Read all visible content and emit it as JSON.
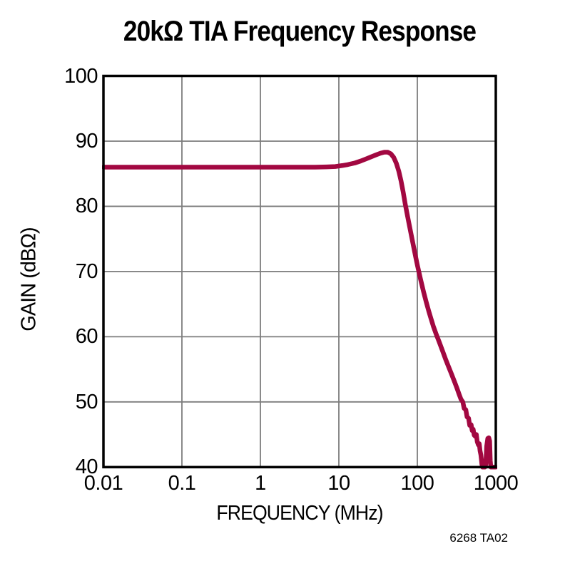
{
  "title": "20kΩ TIA Frequency Response",
  "footer": {
    "revision_code": "6268 TA02"
  },
  "chart_data": {
    "type": "line",
    "title": "20kΩ TIA Frequency Response",
    "xlabel": "FREQUENCY (MHz)",
    "ylabel": "GAIN (dBΩ)",
    "x_scale": "log",
    "y_scale": "linear",
    "xlim": [
      0.01,
      1000
    ],
    "ylim": [
      40,
      100
    ],
    "xticks": [
      "0.01",
      "0.1",
      "1",
      "10",
      "100",
      "1000"
    ],
    "yticks": [
      "100",
      "90",
      "80",
      "70",
      "60",
      "50",
      "40"
    ],
    "grid": true,
    "legend": false,
    "colors": {
      "line": "#A20841",
      "grid": "#7d7d7d",
      "frame": "#000000",
      "text": "#000000",
      "background": "#ffffff"
    },
    "series": [
      {
        "name": "gain",
        "points": [
          [
            0.01,
            86.0
          ],
          [
            0.02,
            86.0
          ],
          [
            0.05,
            86.0
          ],
          [
            0.1,
            86.0
          ],
          [
            0.2,
            86.0
          ],
          [
            0.5,
            86.0
          ],
          [
            1,
            86.0
          ],
          [
            2,
            86.0
          ],
          [
            3,
            86.0
          ],
          [
            5,
            86.0
          ],
          [
            7,
            86.05
          ],
          [
            9,
            86.1
          ],
          [
            11,
            86.25
          ],
          [
            13,
            86.4
          ],
          [
            16,
            86.65
          ],
          [
            19,
            86.95
          ],
          [
            22,
            87.25
          ],
          [
            26,
            87.6
          ],
          [
            30,
            87.9
          ],
          [
            34,
            88.15
          ],
          [
            38,
            88.3
          ],
          [
            42,
            88.3
          ],
          [
            46,
            88.05
          ],
          [
            50,
            87.5
          ],
          [
            54,
            86.6
          ],
          [
            58,
            85.4
          ],
          [
            62,
            83.9
          ],
          [
            66,
            82.2
          ],
          [
            70,
            80.4
          ],
          [
            75,
            78.5
          ],
          [
            80,
            76.8
          ],
          [
            85,
            75.2
          ],
          [
            90,
            73.7
          ],
          [
            95,
            72.3
          ],
          [
            100,
            71.0
          ],
          [
            110,
            68.8
          ],
          [
            120,
            66.9
          ],
          [
            130,
            65.3
          ],
          [
            140,
            63.9
          ],
          [
            150,
            62.7
          ],
          [
            160,
            61.6
          ],
          [
            175,
            60.3
          ],
          [
            190,
            59.2
          ],
          [
            210,
            57.8
          ],
          [
            230,
            56.5
          ],
          [
            250,
            55.4
          ],
          [
            270,
            54.4
          ],
          [
            300,
            53.0
          ],
          [
            320,
            52.1
          ],
          [
            340,
            51.2
          ],
          [
            360,
            50.4
          ],
          [
            380,
            50.0
          ],
          [
            395,
            49.0
          ],
          [
            415,
            48.8
          ],
          [
            430,
            47.7
          ],
          [
            450,
            47.5
          ],
          [
            465,
            46.4
          ],
          [
            485,
            46.5
          ],
          [
            500,
            45.6
          ],
          [
            515,
            45.8
          ],
          [
            530,
            44.9
          ],
          [
            550,
            44.7
          ],
          [
            565,
            45.0
          ],
          [
            580,
            43.9
          ],
          [
            600,
            43.4
          ],
          [
            615,
            43.6
          ],
          [
            630,
            42.5
          ],
          [
            645,
            41.9
          ],
          [
            655,
            41.2
          ],
          [
            665,
            40.4
          ],
          [
            680,
            40.0
          ],
          [
            700,
            40.0
          ],
          [
            725,
            40.0
          ],
          [
            745,
            40.4
          ],
          [
            765,
            43.2
          ],
          [
            790,
            44.4
          ],
          [
            815,
            44.5
          ],
          [
            835,
            44.0
          ],
          [
            850,
            41.0
          ],
          [
            865,
            40.0
          ],
          [
            900,
            40.0
          ],
          [
            950,
            40.0
          ],
          [
            1000,
            40.0
          ]
        ]
      }
    ]
  }
}
